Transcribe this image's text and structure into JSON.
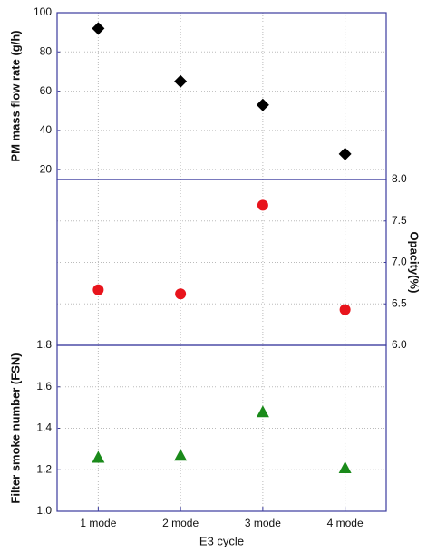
{
  "chart_data": [
    {
      "type": "scatter",
      "ylabel": "PM mass flow rate (g/h)",
      "series": [
        {
          "color": "#000000",
          "marker": "diamond",
          "values": [
            92,
            65,
            53,
            28
          ]
        }
      ],
      "ylim": [
        15,
        100
      ],
      "yticks": [
        20,
        40,
        60,
        80,
        100
      ],
      "grid": true
    },
    {
      "type": "scatter",
      "y2label": "Opacity(%)",
      "series": [
        {
          "color": "#e8141c",
          "marker": "circle",
          "axis": "y2",
          "values": [
            6.67,
            6.62,
            7.69,
            6.43
          ]
        }
      ],
      "y2lim": [
        6,
        8
      ],
      "y2ticks": [
        {
          "value": 6,
          "label": "6.0"
        },
        6.5,
        {
          "value": 7,
          "label": "7.0"
        },
        7.5,
        {
          "value": 8,
          "label": "8.0"
        }
      ],
      "grid": true
    },
    {
      "type": "scatter",
      "ylabel": "Filter smoke number (FSN)",
      "xlabel": "E3 cycle",
      "categories": [
        "1 mode",
        "2 mode",
        "3 mode",
        "4 mode"
      ],
      "series": [
        {
          "color": "#1a8a1a",
          "marker": "triangle",
          "values": [
            1.26,
            1.27,
            1.48,
            1.21
          ]
        }
      ],
      "ylim": [
        1.0,
        1.8
      ],
      "yticks": [
        {
          "value": 1.0,
          "label": "1.0"
        },
        1.2,
        1.4,
        1.6,
        1.8
      ],
      "grid": true
    }
  ]
}
